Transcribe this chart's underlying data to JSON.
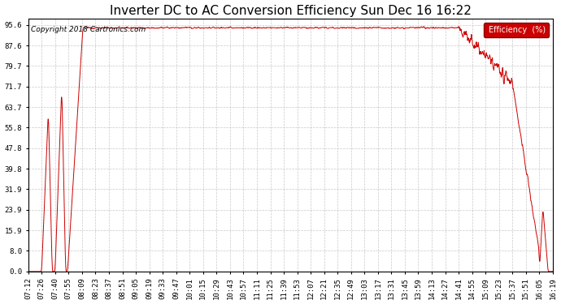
{
  "title": "Inverter DC to AC Conversion Efficiency Sun Dec 16 16:22",
  "copyright_text": "Copyright 2018 Cartronics.com",
  "legend_label": "Efficiency  (%)",
  "legend_bg": "#cc0000",
  "legend_text_color": "#ffffff",
  "line_color": "#cc0000",
  "background_color": "#ffffff",
  "grid_color": "#bbbbbb",
  "yticks": [
    0.0,
    8.0,
    15.9,
    23.9,
    31.9,
    39.8,
    47.8,
    55.8,
    63.7,
    71.7,
    79.7,
    87.6,
    95.6
  ],
  "ylim": [
    0.0,
    98.0
  ],
  "x_tick_labels": [
    "07:12",
    "07:26",
    "07:40",
    "07:55",
    "08:09",
    "08:23",
    "08:37",
    "08:51",
    "09:05",
    "09:19",
    "09:33",
    "09:47",
    "10:01",
    "10:15",
    "10:29",
    "10:43",
    "10:57",
    "11:11",
    "11:25",
    "11:39",
    "11:53",
    "12:07",
    "12:21",
    "12:35",
    "12:49",
    "13:03",
    "13:17",
    "13:31",
    "13:45",
    "13:59",
    "14:13",
    "14:27",
    "14:41",
    "14:55",
    "15:09",
    "15:23",
    "15:37",
    "15:51",
    "16:05",
    "16:19"
  ],
  "title_fontsize": 11,
  "axis_fontsize": 6.5,
  "copyright_fontsize": 6.5,
  "figwidth": 6.9,
  "figheight": 3.75,
  "dpi": 100
}
